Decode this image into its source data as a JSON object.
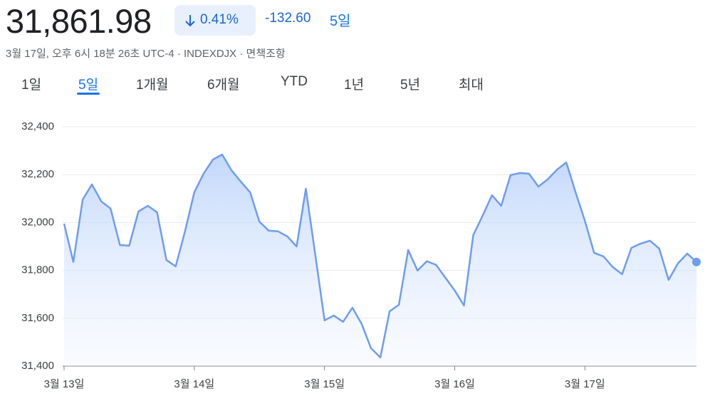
{
  "header": {
    "price": "31,861.98",
    "change_pct": "0.41%",
    "change": "-132.60",
    "period": "5일",
    "subtitle": "3월 17일, 오후 6시 18분 26초 UTC-4 · INDEXDJX · 면책조항",
    "tabs": [
      "1일",
      "5일",
      "1개월",
      "6개월",
      "YTD",
      "1년",
      "5년",
      "최대"
    ],
    "selected_tab": 1
  },
  "chart_data": {
    "type": "line",
    "color": "#6f9ded",
    "grid": true,
    "x": [
      0,
      0.071,
      0.143,
      0.214,
      0.286,
      0.357,
      0.429,
      0.5,
      0.571,
      0.643,
      0.714,
      0.786,
      0.857,
      0.929,
      1,
      1.071,
      1.143,
      1.214,
      1.286,
      1.357,
      1.429,
      1.5,
      1.571,
      1.643,
      1.714,
      1.786,
      1.857,
      1.929,
      2,
      2.071,
      2.143,
      2.214,
      2.286,
      2.357,
      2.429,
      2.5,
      2.571,
      2.643,
      2.714,
      2.786,
      2.857,
      2.929,
      3,
      3.071,
      3.143,
      3.214,
      3.286,
      3.357,
      3.429,
      3.5,
      3.571,
      3.643,
      3.714,
      3.786,
      3.857,
      3.929,
      4,
      4.071,
      4.143,
      4.214,
      4.286,
      4.357,
      4.429,
      4.5,
      4.571,
      4.643,
      4.714,
      4.786,
      4.857
    ],
    "values": [
      31995,
      31835,
      32096,
      32159,
      32088,
      32058,
      31906,
      31903,
      32046,
      32070,
      32043,
      31843,
      31817,
      31963,
      32126,
      32204,
      32263,
      32284,
      32218,
      32171,
      32126,
      32004,
      31966,
      31963,
      31942,
      31900,
      32141,
      31866,
      31591,
      31611,
      31585,
      31644,
      31576,
      31475,
      31436,
      31629,
      31656,
      31885,
      31799,
      31838,
      31823,
      31769,
      31716,
      31653,
      31948,
      32028,
      32114,
      32070,
      32198,
      32207,
      32204,
      32150,
      32180,
      32221,
      32251,
      32126,
      32007,
      31873,
      31858,
      31814,
      31784,
      31894,
      31912,
      31924,
      31891,
      31760,
      31829,
      31870,
      31835
    ],
    "xlim": [
      0,
      4.857
    ],
    "xticks": [
      {
        "value": 0,
        "label": "3월 13일"
      },
      {
        "value": 1,
        "label": "3월 14일"
      },
      {
        "value": 2,
        "label": "3월 15일"
      },
      {
        "value": 3,
        "label": "3월 16일"
      },
      {
        "value": 4,
        "label": "3월 17일"
      }
    ],
    "ylim": [
      31400,
      32400
    ],
    "yticks": [
      {
        "value": 31400,
        "label": "31,400"
      },
      {
        "value": 31600,
        "label": "31,600"
      },
      {
        "value": 31800,
        "label": "31,800"
      },
      {
        "value": 32000,
        "label": "32,000"
      },
      {
        "value": 32200,
        "label": "32,200"
      },
      {
        "value": 32400,
        "label": "32,400"
      }
    ]
  }
}
